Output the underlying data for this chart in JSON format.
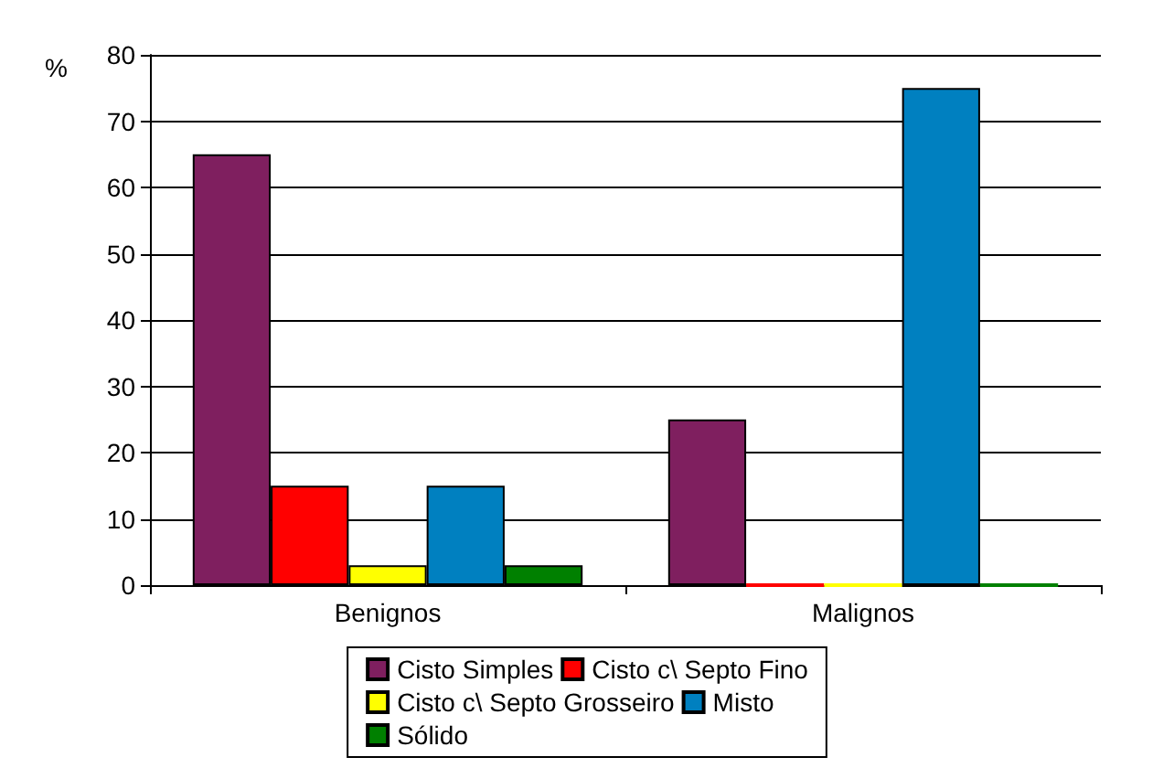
{
  "chart_data": {
    "type": "bar",
    "ylabel": "%",
    "categories": [
      "Benignos",
      "Malignos"
    ],
    "series": [
      {
        "name": "Cisto Simples",
        "color": "#7f1f5f",
        "values": [
          65,
          25
        ]
      },
      {
        "name": "Cisto c\\ Septo Fino",
        "color": "#ff0000",
        "values": [
          15,
          0
        ]
      },
      {
        "name": "Cisto c\\ Septo Grosseiro",
        "color": "#ffff00",
        "values": [
          3,
          0
        ]
      },
      {
        "name": "Misto",
        "color": "#0080c0",
        "values": [
          15,
          75
        ]
      },
      {
        "name": "Sólido",
        "color": "#008000",
        "values": [
          3,
          0
        ]
      }
    ],
    "ylim": [
      0,
      80
    ],
    "yticks": [
      0,
      10,
      20,
      30,
      40,
      50,
      60,
      70,
      80
    ],
    "grid": "y",
    "legend": "bottom"
  }
}
